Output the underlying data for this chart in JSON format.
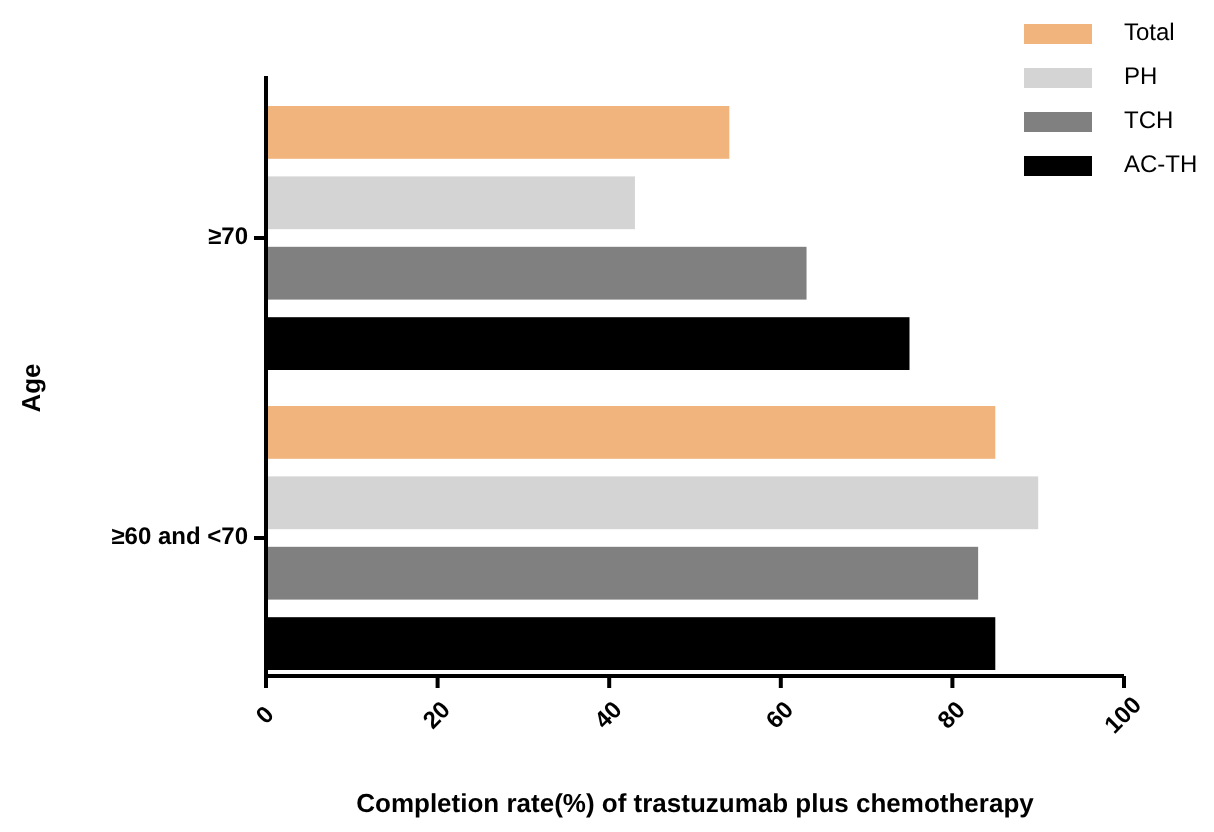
{
  "chart_data": {
    "type": "bar",
    "orientation": "horizontal",
    "xlabel": "Completion rate(%) of trastuzumab plus chemotherapy",
    "ylabel": "Age",
    "categories": [
      "≥70",
      "≥60 and <70"
    ],
    "series": [
      {
        "name": "Total",
        "color": "#f0b47c",
        "values": [
          54,
          85
        ]
      },
      {
        "name": "PH",
        "color": "#d4d4d4",
        "values": [
          43,
          90
        ]
      },
      {
        "name": "TCH",
        "color": "#808080",
        "values": [
          63,
          83
        ]
      },
      {
        "name": "AC-TH",
        "color": "#000000",
        "values": [
          75,
          85
        ]
      }
    ],
    "xlim": [
      0,
      100
    ],
    "xticks": [
      0,
      20,
      40,
      60,
      80,
      100
    ],
    "grid": false,
    "legend": "top right"
  }
}
